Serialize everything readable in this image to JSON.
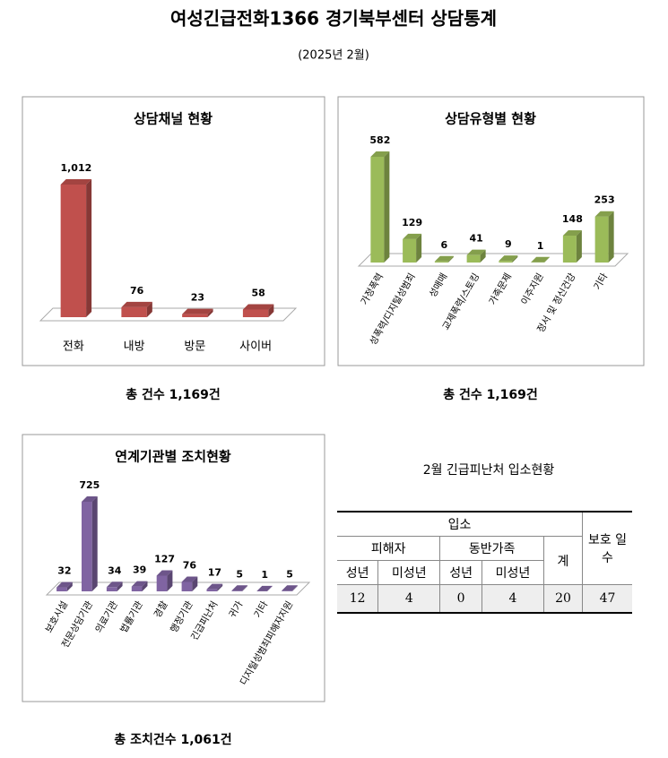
{
  "header": {
    "title": "여성긴급전화1366 경기북부센터 상담통계",
    "subtitle": "(2025년  2월)"
  },
  "chart_data": [
    {
      "type": "bar",
      "title": "상담채널 현황",
      "color": "#c0504d",
      "categories": [
        "전화",
        "내방",
        "방문",
        "사이버"
      ],
      "values": [
        1012,
        76,
        23,
        58
      ],
      "value_labels": [
        "1,012",
        "76",
        "23",
        "58"
      ]
    },
    {
      "type": "bar",
      "title": "상담유형별 현황",
      "color": "#9bbb59",
      "categories": [
        "가정폭력",
        "성폭력/디지털성범죄",
        "성매매",
        "교제폭력/스토킹",
        "가족문제",
        "이주지원",
        "정서 및 정신건강",
        "기타"
      ],
      "values": [
        582,
        129,
        6,
        41,
        9,
        1,
        148,
        253
      ]
    },
    {
      "type": "bar",
      "title": "연계기관별 조치현황",
      "color": "#8064a2",
      "categories": [
        "보호시설",
        "전문상담기관",
        "의료기관",
        "법률기관",
        "경찰",
        "행정기관",
        "긴급피난처",
        "귀가",
        "기타",
        "디지털성범죄피해자지원"
      ],
      "values": [
        32,
        725,
        34,
        39,
        127,
        76,
        17,
        5,
        1,
        5
      ]
    }
  ],
  "totals": [
    "총 건수  1,169건",
    "총 건수  1,169건",
    "총 조치건수 1,061건"
  ],
  "table": {
    "title": "2월 긴급피난처 입소현황",
    "header": {
      "admission": "입소",
      "protection_days": "보호 일수",
      "victim": "피해자",
      "family": "동반가족",
      "total": "계",
      "sub": [
        "성년",
        "미성년",
        "성년",
        "미성년"
      ]
    },
    "rows": [
      [
        12,
        4,
        0,
        4,
        20,
        47
      ]
    ]
  }
}
